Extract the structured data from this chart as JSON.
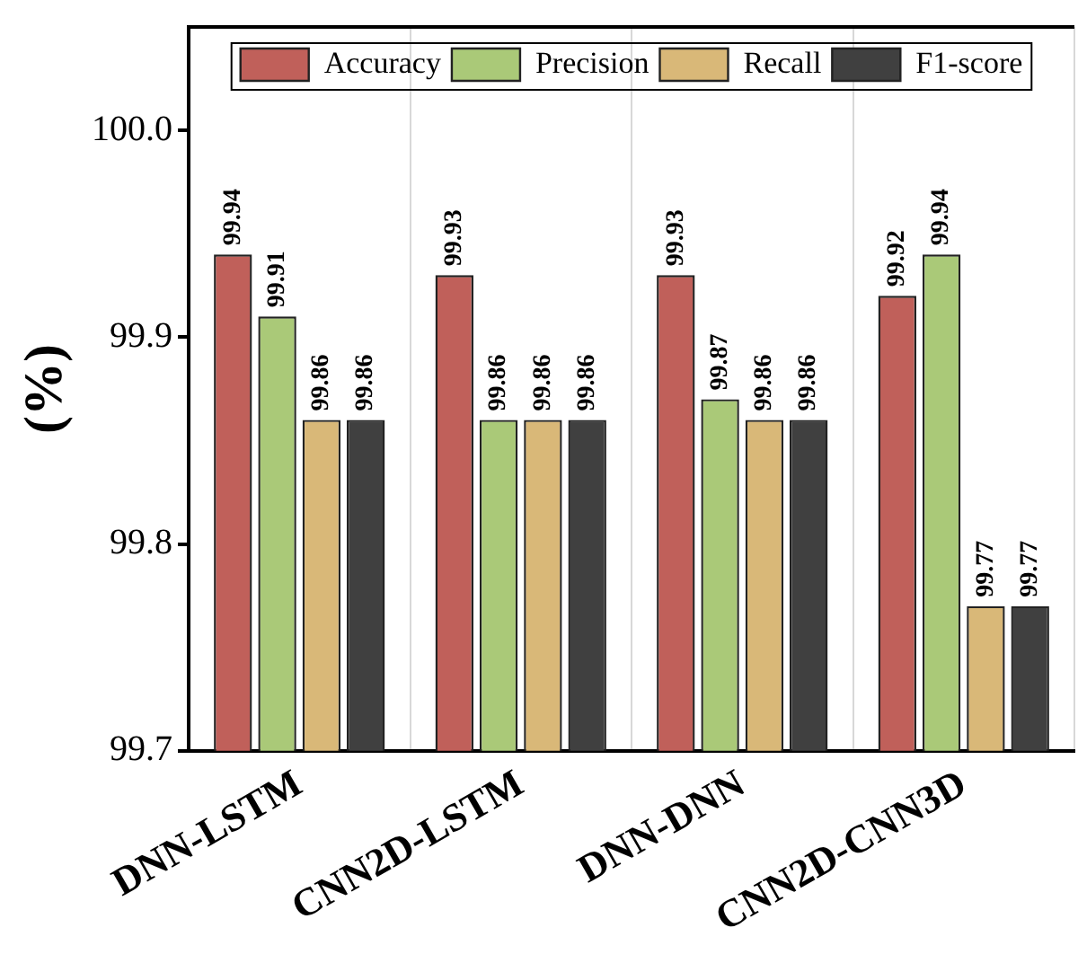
{
  "chart_data": {
    "type": "bar",
    "ylabel": "(%)",
    "categories": [
      "DNN-LSTM",
      "CNN2D-LSTM",
      "DNN-DNN",
      "CNN2D-CNN3D"
    ],
    "series": [
      {
        "name": "Accuracy",
        "color": "#c0605a",
        "values": [
          99.94,
          99.93,
          99.93,
          99.92
        ]
      },
      {
        "name": "Precision",
        "color": "#aac978",
        "values": [
          99.91,
          99.86,
          99.87,
          99.94
        ]
      },
      {
        "name": "Recall",
        "color": "#d9b878",
        "values": [
          99.86,
          99.86,
          99.86,
          99.77
        ]
      },
      {
        "name": "F1-score",
        "color": "#404040",
        "values": [
          99.86,
          99.86,
          99.86,
          99.77
        ]
      }
    ],
    "ylim": [
      99.7,
      100.05
    ],
    "yticks": [
      99.7,
      99.8,
      99.9,
      {
        "value": 100,
        "label": "100.0"
      }
    ],
    "grid": "x",
    "legend": "top",
    "data_labels": true
  }
}
